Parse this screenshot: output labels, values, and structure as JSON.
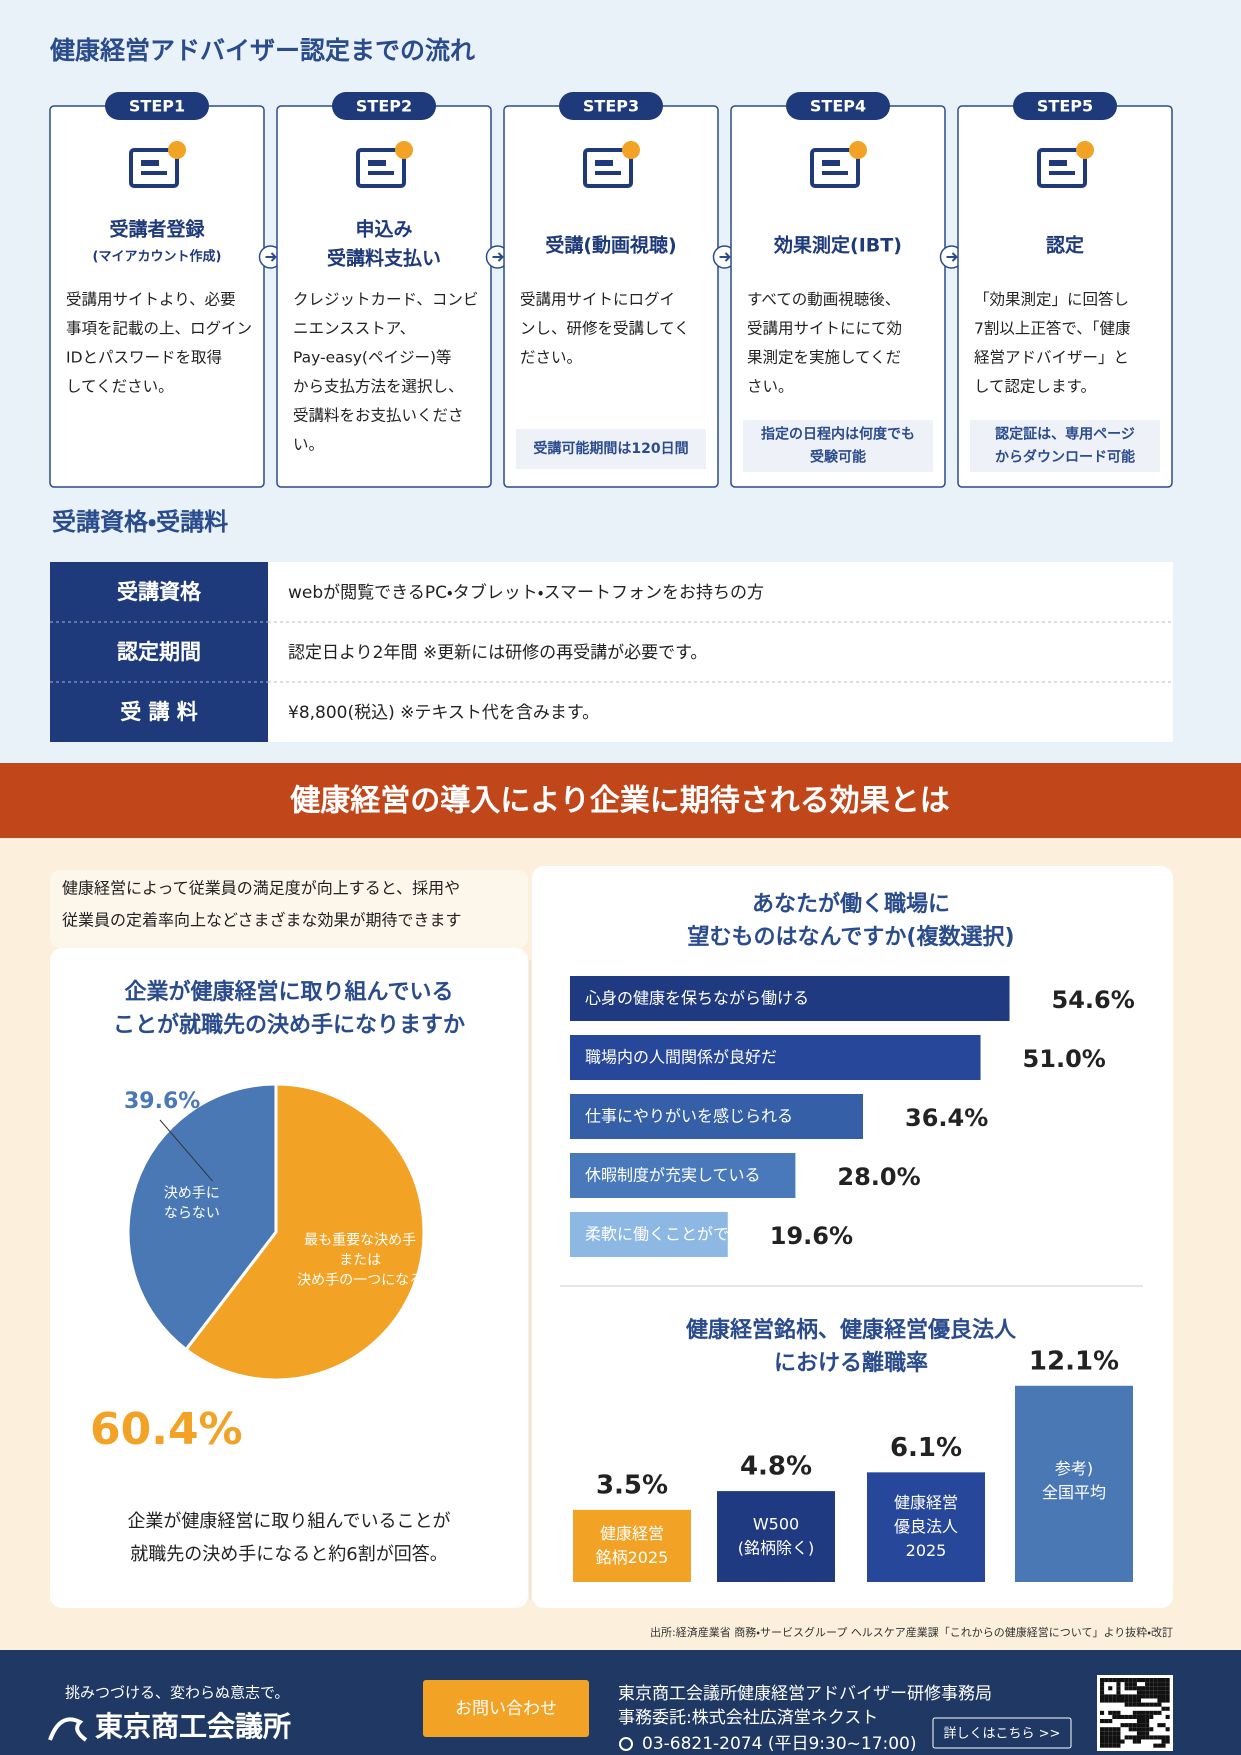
{
  "header": {
    "title": "健康経営アドバイザー認定までの流れ"
  },
  "steps": [
    {
      "label": "STEP1",
      "title": [
        "受講者登録"
      ],
      "subtitle": "(マイアカウント作成)",
      "text": [
        "受講用サイトより、必要",
        "事項を記載の上、ログイン",
        "IDとパスワードを取得",
        "してください。"
      ]
    },
    {
      "label": "STEP2",
      "title": [
        "申込み",
        "受講料支払い"
      ],
      "text": [
        "クレジットカード、コンビ",
        "ニエンスストア、",
        "Pay-easy(ペイジー)等",
        "から支払方法を選択し、",
        "受講料をお支払いくださ",
        "い。"
      ]
    },
    {
      "label": "STEP3",
      "title": [
        "受講(動画視聴)"
      ],
      "text": [
        "受講用サイトにログイ",
        "ンし、研修を受講してく",
        "ださい。"
      ],
      "note": [
        "受講可能期間は120日間"
      ]
    },
    {
      "label": "STEP4",
      "title": [
        "効果測定(IBT)"
      ],
      "text": [
        "すべての動画視聴後、",
        "受講用サイトににて効",
        "果測定を実施してくだ",
        "さい。"
      ],
      "note": [
        "指定の日程内は何度でも",
        "受験可能"
      ]
    },
    {
      "label": "STEP5",
      "title": [
        "認定"
      ],
      "text": [
        "「効果測定」に回答し",
        "7割以上正答で、「健康",
        "経営アドバイザー」と",
        "して認定します。"
      ],
      "note": [
        "認定証は、専用ページ",
        "からダウンロード可能"
      ]
    }
  ],
  "qualification": {
    "title": "受講資格・受講料",
    "rows": [
      [
        "受講資格",
        "webが閲覧できるPC・タブレット・スマートフォンをお持ちの方"
      ],
      [
        "認定期間",
        "認定日より2年間 ※更新には研修の再受講が必要です。"
      ],
      [
        "受 講 料",
        "¥8,800(税込) ※テキスト代を含みます。"
      ]
    ]
  },
  "effects": {
    "banner": "健康経営の導入により企業に期待される効果とは",
    "intro": [
      "健康経営によって従業員の満足度が向上すると、採用や",
      "従業員の定着率向上などさまざまな効果が期待できます"
    ],
    "pie_note": [
      "企業が健康経営に取り組んでいることが",
      "就職先の決め手になると約6割が回答。"
    ],
    "source": "出所:経済産業省 商務・サービスグループ ヘルスケア産業課「これからの健康経営について」より抜粋・改訂"
  },
  "chart_data": [
    {
      "type": "pie",
      "title": [
        "企業が健康経営に取り組んでいる",
        "ことが就職先の決め手になりますか"
      ],
      "categories": [
        "最も重要な決め手\nまたは\n決め手の一つになる",
        "決め手に\nならない"
      ],
      "values": [
        60.4,
        39.6
      ],
      "value_labels": [
        "60.4%",
        "39.6%"
      ],
      "colors": [
        "#f2a224",
        "#4a78b5"
      ]
    },
    {
      "type": "hbar",
      "title": [
        "あなたが働く職場に",
        "望むものはなんですか(複数選択)"
      ],
      "categories": [
        "心身の健康を保ちながら働ける",
        "職場内の人間関係が良好だ",
        "仕事にやりがいを感じられる",
        "休暇制度が充実している",
        "柔軟に働くことができる"
      ],
      "values": [
        54.6,
        51.0,
        36.4,
        28.0,
        19.6
      ],
      "value_labels": [
        "54.6%",
        "51.0%",
        "36.4%",
        "28.0%",
        "19.6%"
      ],
      "colors": [
        "#1f3a80",
        "#27479a",
        "#3560a8",
        "#4a79bb",
        "#8db8e3"
      ],
      "xlim": [
        0,
        60
      ]
    },
    {
      "type": "column",
      "title": [
        "健康経営銘柄、健康経営優良法人",
        "における離職率"
      ],
      "categories": [
        "健康経営\n銘柄2025",
        "W500\n(銘柄除く)",
        "健康経営\n優良法人\n2025",
        "参考)\n全国平均"
      ],
      "values": [
        3.5,
        4.8,
        6.1,
        12.1
      ],
      "value_labels": [
        "3.5%",
        "4.8%",
        "6.1%",
        "12.1%"
      ],
      "colors": [
        "#f2a224",
        "#1f3a80",
        "#27479a",
        "#4a78b5"
      ],
      "ylim": [
        -1.5,
        12.5
      ]
    }
  ],
  "footer": {
    "tagline": "挑みつづける、変わらぬ意志で。",
    "org": "東京商工会議所",
    "contact_button": "お問い合わせ",
    "office": "東京商工会議所健康経営アドバイザー研修事務局",
    "delegate": "事務委託:株式会社広済堂ネクスト",
    "phone": "03-6821-2074 (平日9:30~17:00)",
    "details_button": "詳しくはこちら >>"
  }
}
